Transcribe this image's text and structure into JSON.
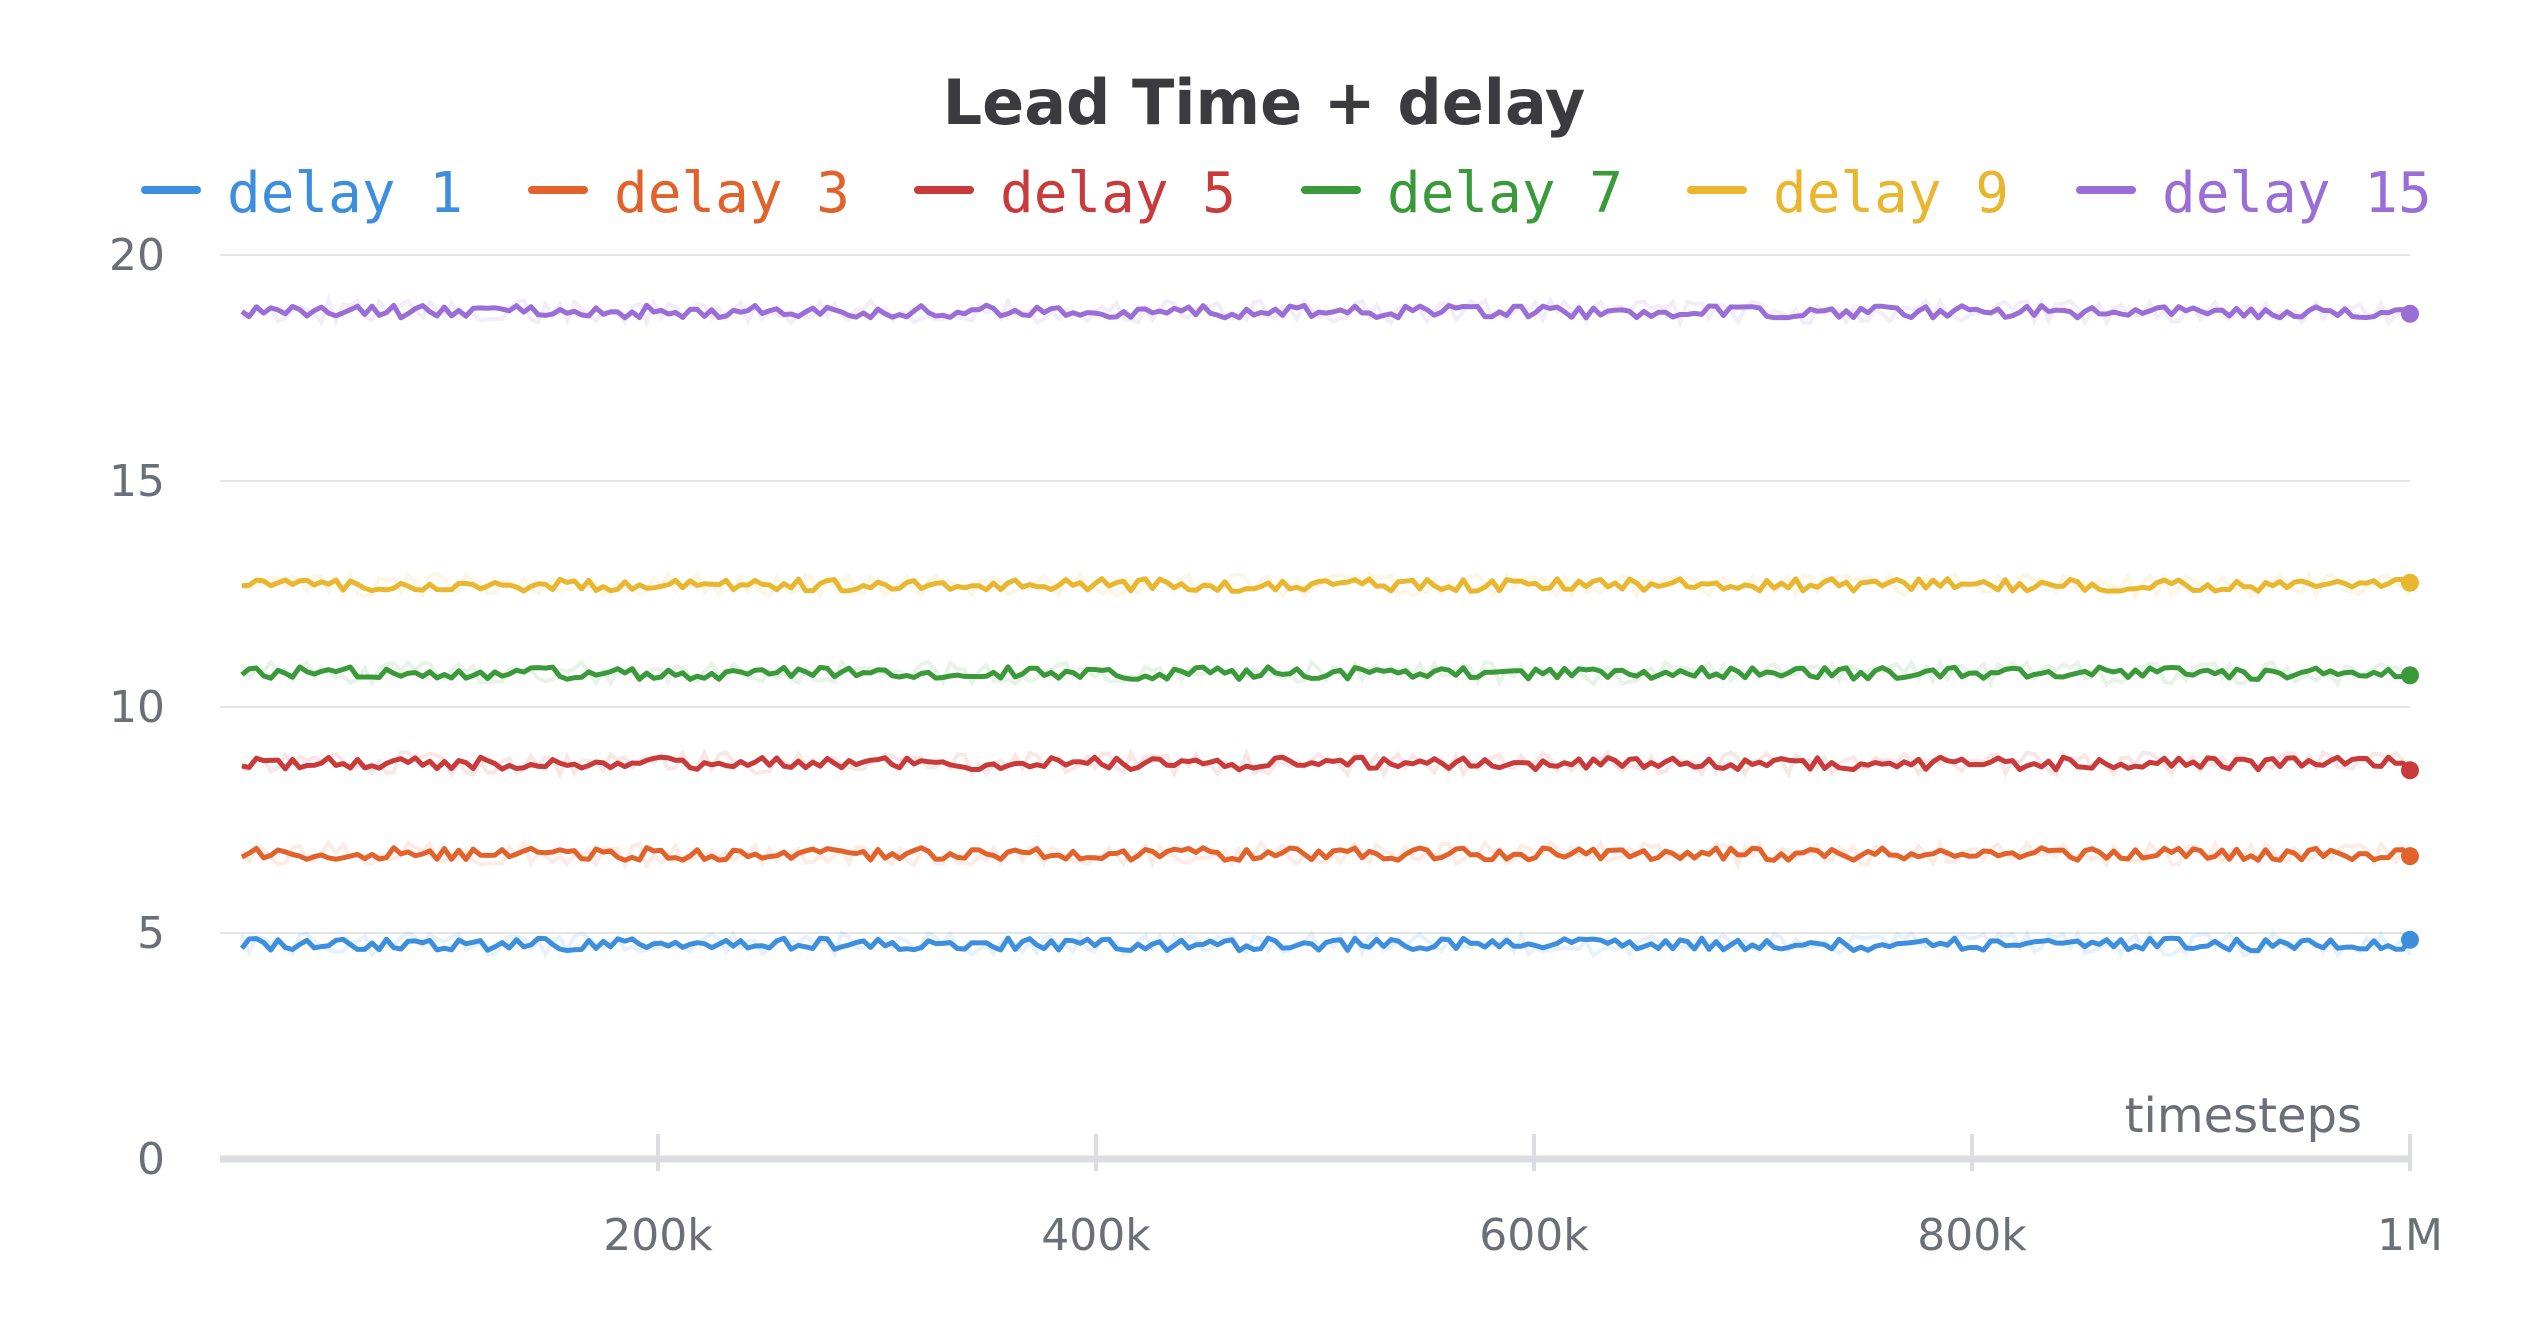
{
  "chart_data": {
    "type": "line",
    "title": "Lead Time + delay",
    "xlabel": "timesteps",
    "ylabel": "",
    "xlim": [
      0,
      1000000
    ],
    "ylim": [
      0,
      20
    ],
    "xticks": [
      {
        "value": 200000,
        "label": "200k"
      },
      {
        "value": 400000,
        "label": "400k"
      },
      {
        "value": 600000,
        "label": "600k"
      },
      {
        "value": 800000,
        "label": "800k"
      },
      {
        "value": 1000000,
        "label": "1M"
      }
    ],
    "yticks": [
      {
        "value": 0,
        "label": "0"
      },
      {
        "value": 5,
        "label": "5"
      },
      {
        "value": 10,
        "label": "10"
      },
      {
        "value": 15,
        "label": "15"
      },
      {
        "value": 20,
        "label": "20"
      }
    ],
    "grid": "horizontal",
    "legend_position": "top",
    "series": [
      {
        "name": "delay 1",
        "color": "#3d8fde",
        "mean": 4.75,
        "last": 4.85
      },
      {
        "name": "delay 3",
        "color": "#e2622b",
        "mean": 6.75,
        "last": 6.7
      },
      {
        "name": "delay 5",
        "color": "#c93a3a",
        "mean": 8.75,
        "last": 8.6
      },
      {
        "name": "delay 7",
        "color": "#3a9a3a",
        "mean": 10.75,
        "last": 10.7
      },
      {
        "name": "delay 9",
        "color": "#e9b72f",
        "mean": 12.7,
        "last": 12.75
      },
      {
        "name": "delay 15",
        "color": "#9a6ed6",
        "mean": 18.75,
        "last": 18.7
      }
    ]
  }
}
